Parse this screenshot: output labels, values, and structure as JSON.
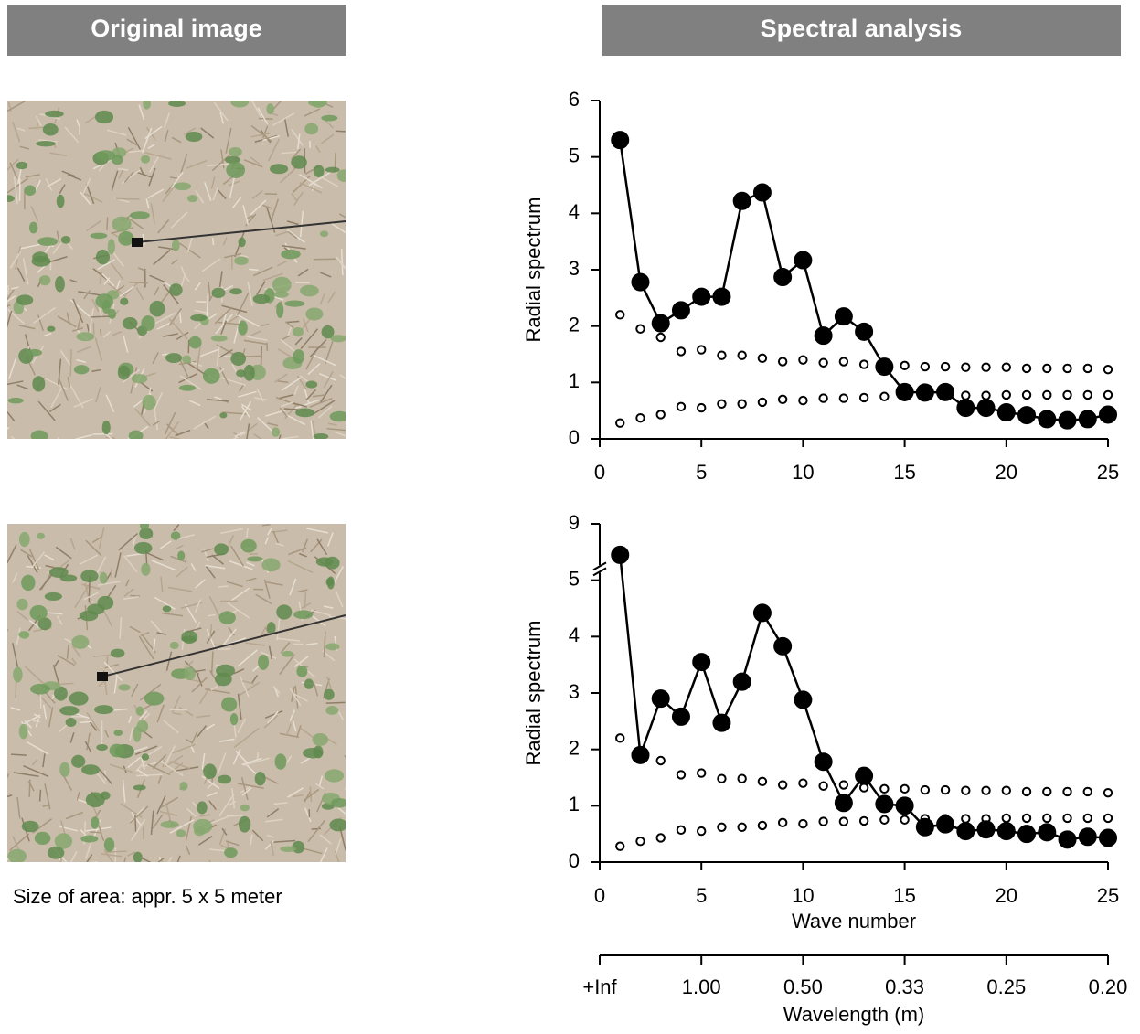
{
  "headers": [
    "Original image",
    "Spectral analysis"
  ],
  "caption": "Size of area: appr. 5 x 5 meter",
  "chart_data": [
    {
      "type": "scatter",
      "ylabel": "Radial spectrum",
      "x": [
        1,
        2,
        3,
        4,
        5,
        6,
        7,
        8,
        9,
        10,
        11,
        12,
        13,
        14,
        15,
        16,
        17,
        18,
        19,
        20,
        21,
        22,
        23,
        24,
        25
      ],
      "series": [
        {
          "color": "#000000",
          "marker": "filled",
          "line": true,
          "values": [
            5.3,
            2.78,
            2.05,
            2.28,
            2.52,
            2.52,
            4.22,
            4.37,
            2.87,
            3.17,
            1.83,
            2.17,
            1.9,
            1.28,
            0.83,
            0.82,
            0.83,
            0.55,
            0.55,
            0.47,
            0.42,
            0.35,
            0.33,
            0.35,
            0.43
          ]
        },
        {
          "color": "#000000",
          "marker": "open",
          "line": false,
          "values": [
            2.2,
            1.95,
            1.8,
            1.55,
            1.58,
            1.48,
            1.48,
            1.43,
            1.37,
            1.4,
            1.35,
            1.37,
            1.32,
            1.3,
            1.3,
            1.28,
            1.28,
            1.27,
            1.27,
            1.27,
            1.25,
            1.25,
            1.25,
            1.25,
            1.23
          ]
        },
        {
          "color": "#000000",
          "marker": "open",
          "line": false,
          "values": [
            0.28,
            0.37,
            0.43,
            0.57,
            0.55,
            0.62,
            0.62,
            0.65,
            0.7,
            0.68,
            0.72,
            0.72,
            0.73,
            0.75,
            0.75,
            0.77,
            0.77,
            0.77,
            0.77,
            0.78,
            0.78,
            0.78,
            0.78,
            0.78,
            0.78
          ]
        }
      ],
      "xlim": [
        0,
        25
      ],
      "xticks": [
        0,
        5,
        10,
        15,
        20,
        25
      ],
      "ylim": [
        0,
        6
      ],
      "yticks": [
        0,
        1,
        2,
        3,
        4,
        5,
        6
      ],
      "axis_break": false
    },
    {
      "type": "scatter",
      "ylabel": "Radial spectrum",
      "xlabel": "Wave number",
      "x2label": "Wavelength (m)",
      "x": [
        1,
        2,
        3,
        4,
        5,
        6,
        7,
        8,
        9,
        10,
        11,
        12,
        13,
        14,
        15,
        16,
        17,
        18,
        19,
        20,
        21,
        22,
        23,
        24,
        25
      ],
      "series": [
        {
          "color": "#000000",
          "marker": "filled",
          "line": true,
          "values": [
            6.8,
            1.9,
            2.9,
            2.58,
            3.55,
            2.47,
            3.2,
            4.42,
            3.83,
            2.88,
            1.78,
            1.05,
            1.53,
            1.03,
            1.0,
            0.62,
            0.67,
            0.55,
            0.58,
            0.55,
            0.5,
            0.53,
            0.4,
            0.45,
            0.43
          ]
        },
        {
          "color": "#000000",
          "marker": "open",
          "line": false,
          "values": [
            2.2,
            1.95,
            1.8,
            1.55,
            1.58,
            1.48,
            1.48,
            1.43,
            1.37,
            1.4,
            1.35,
            1.37,
            1.32,
            1.3,
            1.3,
            1.28,
            1.28,
            1.27,
            1.27,
            1.27,
            1.25,
            1.25,
            1.25,
            1.25,
            1.23
          ]
        },
        {
          "color": "#000000",
          "marker": "open",
          "line": false,
          "values": [
            0.28,
            0.37,
            0.43,
            0.57,
            0.55,
            0.62,
            0.62,
            0.65,
            0.7,
            0.68,
            0.72,
            0.72,
            0.73,
            0.75,
            0.75,
            0.77,
            0.77,
            0.77,
            0.77,
            0.78,
            0.78,
            0.78,
            0.78,
            0.78,
            0.78
          ]
        }
      ],
      "xlim": [
        0,
        25
      ],
      "xticks": [
        0,
        5,
        10,
        15,
        20,
        25
      ],
      "ylim": [
        0,
        9
      ],
      "yticks": [
        0,
        1,
        2,
        3,
        4,
        5,
        9
      ],
      "axis_break": true,
      "x2ticks": [
        {
          "value": 0,
          "label": "+Inf"
        },
        {
          "value": 5,
          "label": "1.00"
        },
        {
          "value": 10,
          "label": "0.50"
        },
        {
          "value": 15,
          "label": "0.33"
        },
        {
          "value": 20,
          "label": "0.25"
        },
        {
          "value": 25,
          "label": "0.20"
        }
      ]
    }
  ]
}
